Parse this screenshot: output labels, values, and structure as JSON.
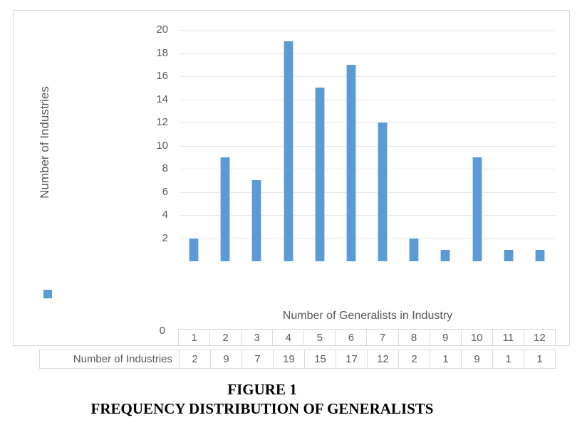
{
  "chart_data": {
    "type": "bar",
    "title": "",
    "categories": [
      "1",
      "2",
      "3",
      "4",
      "5",
      "6",
      "7",
      "8",
      "9",
      "10",
      "11",
      "12"
    ],
    "values": [
      2,
      9,
      7,
      19,
      15,
      17,
      12,
      2,
      1,
      9,
      1,
      1
    ],
    "series": [
      {
        "name": "Number of Industries",
        "values": [
          2,
          9,
          7,
          19,
          15,
          17,
          12,
          2,
          1,
          9,
          1,
          1
        ]
      }
    ],
    "xlabel": "Number of Generalists in Industry",
    "ylabel": "Number of Industries",
    "ylim": [
      0,
      20
    ],
    "yticks": [
      2,
      4,
      6,
      8,
      10,
      12,
      14,
      16,
      18,
      20
    ],
    "zero_tick_label": "0",
    "grid": true,
    "legend_position": "bottom-left",
    "bar_color": "#5B9BD5",
    "bar_edge_color": "#BDD7EE",
    "gridline_color": "#E7E7E7",
    "axis_text_color": "#595959",
    "frame_border_color": "#D9D9D9"
  },
  "data_table": {
    "row_label": "Number of Industries",
    "columns": [
      "1",
      "2",
      "3",
      "4",
      "5",
      "6",
      "7",
      "8",
      "9",
      "10",
      "11",
      "12"
    ],
    "values": [
      "2",
      "9",
      "7",
      "19",
      "15",
      "17",
      "12",
      "2",
      "1",
      "9",
      "1",
      "1"
    ]
  },
  "caption": {
    "line1": "FIGURE 1",
    "line2": "FREQUENCY DISTRIBUTION OF GENERALISTS"
  }
}
